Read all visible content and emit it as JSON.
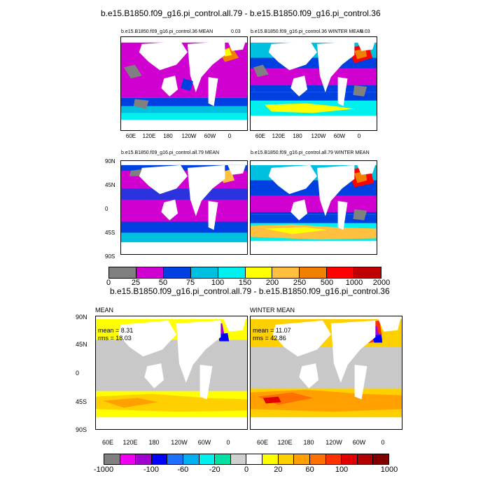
{
  "top_title": "b.e15.B1850.f09_g16.pi_control.all.79 - b.e15.B1850.f09_g16.pi_control.36",
  "diff_title": "b.e15.B1850.f09_g16.pi_control.all.79 - b.e15.B1850.f09_g16.pi_control.36",
  "panels": {
    "p1_title": "b.e15.B1850.f09_g16.pi_control.36 MEAN",
    "p1_corner": "0.03",
    "p2_title": "b.e15.B1850.f09_g16.pi_control.36 WINTER MEAN",
    "p2_corner": "0.03",
    "p3_title": "b.e15.B1850.f09_g16.pi_control.all.79 MEAN",
    "p4_title": "b.e15.B1850.f09_g16.pi_control.all.79 WINTER MEAN",
    "d1_title": "MEAN",
    "d2_title": "WINTER MEAN",
    "d1_mean": "mean = 8.31",
    "d1_rms": "rms = 18.03",
    "d2_mean": "mean = 11.07",
    "d2_rms": "rms = 42.86"
  },
  "axes": {
    "lon_ticks": [
      "60E",
      "120E",
      "180",
      "120W",
      "60W",
      "0"
    ],
    "lat_ticks": [
      "90N",
      "45N",
      "0",
      "45S",
      "90S"
    ]
  },
  "chart_data": {
    "type": "heatmap",
    "colorbar_top": {
      "colors": [
        "#808080",
        "#d000d0",
        "#0040e0",
        "#00c0e0",
        "#00f0f0",
        "#ffff00",
        "#ffc040",
        "#f08000",
        "#ff0000",
        "#c00000"
      ],
      "labels": [
        "0",
        "25",
        "50",
        "75",
        "100",
        "150",
        "200",
        "250",
        "500",
        "1000",
        "2000"
      ]
    },
    "colorbar_bottom": {
      "colors": [
        "#808080",
        "#f000f0",
        "#a000d0",
        "#0000ff",
        "#2070ff",
        "#00b0f0",
        "#00f0f0",
        "#00e0a0",
        "#d0d0d0",
        "#ffffff",
        "#ffff00",
        "#ffd000",
        "#ffa000",
        "#ff7000",
        "#ff3000",
        "#e00000",
        "#b00000",
        "#800000"
      ],
      "labels": [
        "-1000",
        "-100",
        "-60",
        "-20",
        "0",
        "20",
        "60",
        "100",
        "1000"
      ]
    }
  },
  "colors": {
    "land": "#ffffff",
    "ice_gray": "#808080",
    "diff_gray": "#c8c8c8"
  }
}
